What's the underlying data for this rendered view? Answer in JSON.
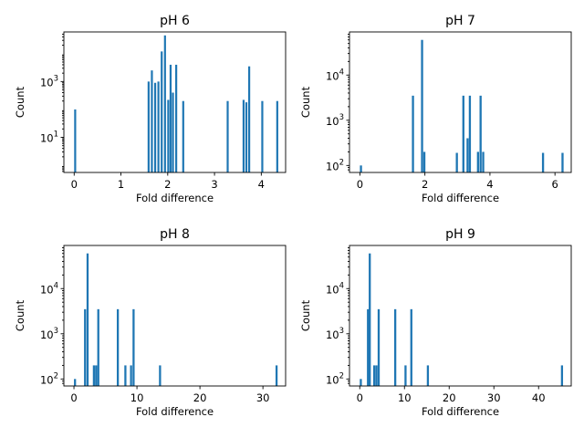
{
  "chart_data": [
    {
      "type": "bar",
      "title": "pH 6",
      "xlabel": "Fold difference",
      "ylabel": "Count",
      "yscale": "log",
      "xlim": [
        -0.22,
        4.52
      ],
      "ylim": [
        0.55,
        60000
      ],
      "xticks": [
        0,
        1,
        2,
        3,
        4
      ],
      "yticks": [
        {
          "value": 10,
          "label": "10",
          "exp": "1"
        },
        {
          "value": 1000,
          "label": "10",
          "exp": "3"
        }
      ],
      "bin_width": 0.043,
      "bars": [
        {
          "x": 0.0,
          "y": 100
        },
        {
          "x": 1.57,
          "y": 1000
        },
        {
          "x": 1.64,
          "y": 2500
        },
        {
          "x": 1.71,
          "y": 900
        },
        {
          "x": 1.78,
          "y": 1000
        },
        {
          "x": 1.85,
          "y": 12000
        },
        {
          "x": 1.92,
          "y": 45000
        },
        {
          "x": 1.99,
          "y": 220
        },
        {
          "x": 2.04,
          "y": 4000
        },
        {
          "x": 2.09,
          "y": 400
        },
        {
          "x": 2.16,
          "y": 4000
        },
        {
          "x": 2.31,
          "y": 200
        },
        {
          "x": 3.26,
          "y": 200
        },
        {
          "x": 3.6,
          "y": 220
        },
        {
          "x": 3.66,
          "y": 180
        },
        {
          "x": 3.72,
          "y": 3500
        },
        {
          "x": 4.0,
          "y": 200
        },
        {
          "x": 4.32,
          "y": 200
        }
      ]
    },
    {
      "type": "bar",
      "title": "pH 7",
      "xlabel": "Fold difference",
      "ylabel": "Count",
      "yscale": "log",
      "xlim": [
        -0.32,
        6.5
      ],
      "ylim": [
        70,
        90000
      ],
      "xticks": [
        0,
        2,
        4,
        6
      ],
      "yticks": [
        {
          "value": 100,
          "label": "10",
          "exp": "2"
        },
        {
          "value": 1000,
          "label": "10",
          "exp": "3"
        },
        {
          "value": 10000,
          "label": "10",
          "exp": "4"
        }
      ],
      "bin_width": 0.065,
      "bars": [
        {
          "x": 0.0,
          "y": 100
        },
        {
          "x": 1.6,
          "y": 3500
        },
        {
          "x": 1.88,
          "y": 60000
        },
        {
          "x": 1.95,
          "y": 200
        },
        {
          "x": 2.95,
          "y": 190
        },
        {
          "x": 3.15,
          "y": 3500
        },
        {
          "x": 3.28,
          "y": 400
        },
        {
          "x": 3.35,
          "y": 3500
        },
        {
          "x": 3.6,
          "y": 200
        },
        {
          "x": 3.68,
          "y": 3500
        },
        {
          "x": 3.76,
          "y": 200
        },
        {
          "x": 5.6,
          "y": 190
        },
        {
          "x": 6.2,
          "y": 190
        }
      ]
    },
    {
      "type": "bar",
      "title": "pH 8",
      "xlabel": "Fold difference",
      "ylabel": "Count",
      "yscale": "log",
      "xlim": [
        -1.6,
        33.6
      ],
      "ylim": [
        70,
        90000
      ],
      "xticks": [
        0,
        10,
        20,
        30
      ],
      "yticks": [
        {
          "value": 100,
          "label": "10",
          "exp": "2"
        },
        {
          "value": 1000,
          "label": "10",
          "exp": "3"
        },
        {
          "value": 10000,
          "label": "10",
          "exp": "4"
        }
      ],
      "bin_width": 0.33,
      "bars": [
        {
          "x": 0.0,
          "y": 100
        },
        {
          "x": 1.6,
          "y": 3500
        },
        {
          "x": 2.0,
          "y": 60000
        },
        {
          "x": 3.0,
          "y": 200
        },
        {
          "x": 3.35,
          "y": 200
        },
        {
          "x": 3.7,
          "y": 3500
        },
        {
          "x": 6.8,
          "y": 3500
        },
        {
          "x": 8.0,
          "y": 200
        },
        {
          "x": 8.9,
          "y": 200
        },
        {
          "x": 9.3,
          "y": 3500
        },
        {
          "x": 13.5,
          "y": 200
        },
        {
          "x": 32.0,
          "y": 200
        }
      ]
    },
    {
      "type": "bar",
      "title": "pH 9",
      "xlabel": "Fold difference",
      "ylabel": "Count",
      "yscale": "log",
      "xlim": [
        -2.3,
        47.3
      ],
      "ylim": [
        70,
        90000
      ],
      "xticks": [
        0,
        10,
        20,
        30,
        40
      ],
      "yticks": [
        {
          "value": 100,
          "label": "10",
          "exp": "2"
        },
        {
          "value": 1000,
          "label": "10",
          "exp": "3"
        },
        {
          "value": 10000,
          "label": "10",
          "exp": "4"
        }
      ],
      "bin_width": 0.47,
      "bars": [
        {
          "x": 0.0,
          "y": 100
        },
        {
          "x": 1.6,
          "y": 3500
        },
        {
          "x": 2.0,
          "y": 60000
        },
        {
          "x": 3.0,
          "y": 200
        },
        {
          "x": 3.5,
          "y": 200
        },
        {
          "x": 4.0,
          "y": 3500
        },
        {
          "x": 7.7,
          "y": 3500
        },
        {
          "x": 10.0,
          "y": 200
        },
        {
          "x": 11.3,
          "y": 3500
        },
        {
          "x": 15.0,
          "y": 200
        },
        {
          "x": 45.0,
          "y": 200
        }
      ]
    }
  ]
}
